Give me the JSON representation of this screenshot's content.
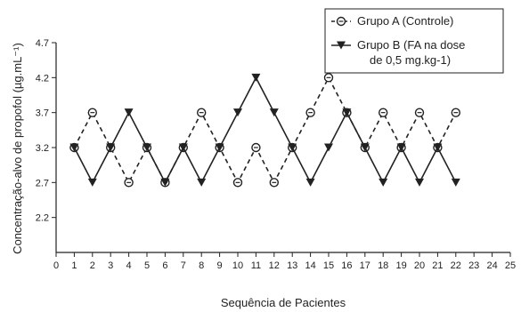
{
  "chart_data": {
    "type": "line",
    "title": "",
    "xlabel": "Sequência de Pacientes",
    "ylabel": "Concentração-alvo de propofol (µg.mL⁻¹)",
    "xlim": [
      0,
      25
    ],
    "ylim": [
      1.7,
      4.7
    ],
    "x_ticks": [
      "0",
      "1",
      "2",
      "3",
      "4",
      "5",
      "6",
      "7",
      "8",
      "9",
      "10",
      "11",
      "12",
      "13",
      "14",
      "15",
      "16",
      "17",
      "18",
      "19",
      "20",
      "21",
      "22",
      "23",
      "24",
      "25"
    ],
    "y_ticks": [
      "2.2",
      "2.7",
      "3.2",
      "3.7",
      "4.2",
      "4.7"
    ],
    "grid": false,
    "legend_position": "top-right",
    "series": [
      {
        "name": "Grupo A (Controle)",
        "marker": "open-circle",
        "line_style": "dashed",
        "color": "#222222",
        "x": [
          1,
          2,
          3,
          4,
          5,
          6,
          7,
          8,
          9,
          10,
          11,
          12,
          13,
          14,
          15,
          16,
          17,
          18,
          19,
          20,
          21,
          22
        ],
        "values": [
          3.2,
          3.7,
          3.2,
          2.7,
          3.2,
          2.7,
          3.2,
          3.7,
          3.2,
          2.7,
          3.2,
          2.7,
          3.2,
          3.7,
          4.2,
          3.7,
          3.2,
          3.7,
          3.2,
          3.7,
          3.2,
          3.7
        ]
      },
      {
        "name": "Grupo B (FA na dose de 0,5 mg.kg-1)",
        "legend_lines": [
          "Grupo B (FA na dose",
          "de 0,5 mg.kg-1)"
        ],
        "marker": "filled-triangle-down",
        "line_style": "solid",
        "color": "#222222",
        "x": [
          1,
          2,
          3,
          4,
          5,
          6,
          7,
          8,
          9,
          10,
          11,
          12,
          13,
          14,
          15,
          16,
          17,
          18,
          19,
          20,
          21,
          22
        ],
        "values": [
          3.2,
          2.7,
          3.2,
          3.7,
          3.2,
          2.7,
          3.2,
          2.7,
          3.2,
          3.7,
          4.2,
          3.7,
          3.2,
          2.7,
          3.2,
          3.7,
          3.2,
          2.7,
          3.2,
          2.7,
          3.2,
          2.7
        ]
      }
    ]
  }
}
